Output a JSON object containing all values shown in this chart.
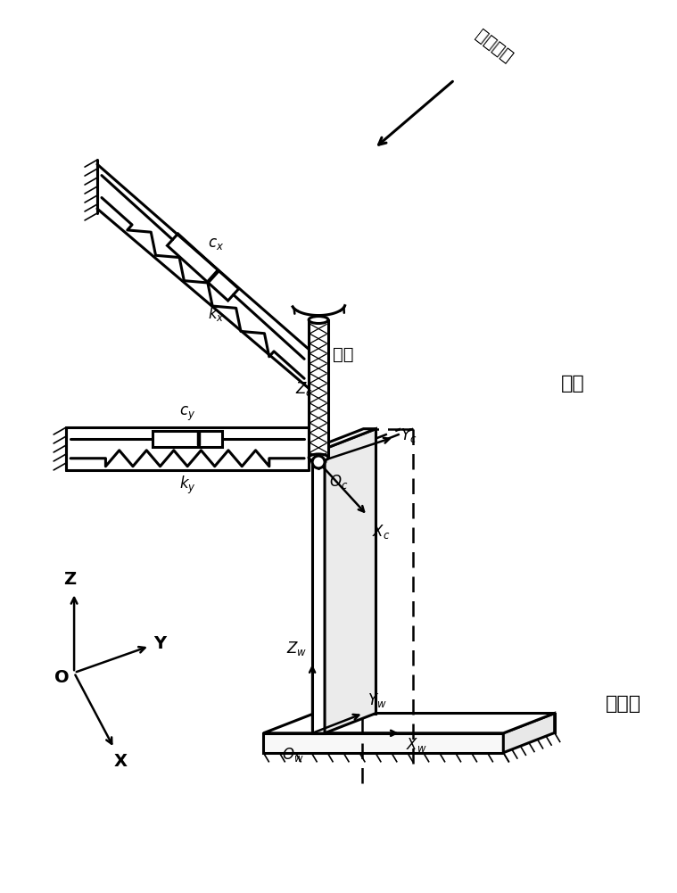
{
  "bg_color": "#ffffff",
  "line_color": "#000000",
  "label_feed": "进给方向",
  "label_tool": "刀具",
  "label_deform": "变形",
  "label_thin": "薄壁件",
  "label_cx": "c_{x}",
  "label_kx": "k_{x}",
  "label_cy": "c_{y}",
  "label_ky": "k_{y}"
}
